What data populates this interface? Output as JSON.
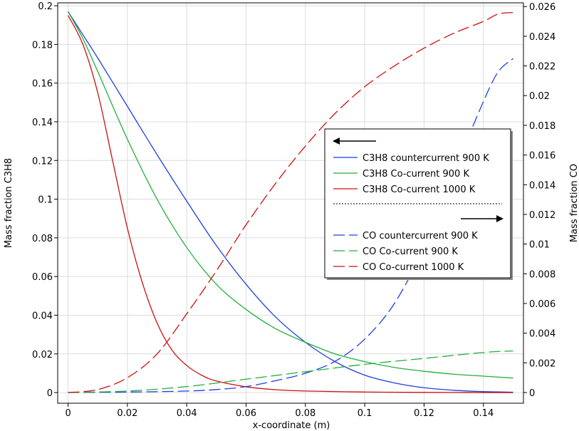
{
  "chart_data": {
    "type": "line",
    "xlabel": "x-coordinate (m)",
    "ylabel_left": "Mass fraction C3H8",
    "ylabel_right": "Mass fraction CO",
    "xlim": [
      -0.0035,
      0.1535
    ],
    "ylim_left": [
      -0.0055,
      0.2015
    ],
    "ylim_right": [
      -0.00072,
      0.02625
    ],
    "xticks": [
      0,
      0.02,
      0.04,
      0.06,
      0.08,
      0.1,
      0.12,
      0.14
    ],
    "xtick_labels": [
      "0",
      "0.02",
      "0.04",
      "0.06",
      "0.08",
      "0.1",
      "0.12",
      "0.14"
    ],
    "yticks_left": [
      0,
      0.02,
      0.04,
      0.06,
      0.08,
      0.1,
      0.12,
      0.14,
      0.16,
      0.18,
      0.2
    ],
    "ytick_labels_left": [
      "0",
      "0.02",
      "0.04",
      "0.06",
      "0.08",
      "0.1",
      "0.12",
      "0.14",
      "0.16",
      "0.18",
      "0.2"
    ],
    "yticks_right": [
      0,
      0.002,
      0.004,
      0.006,
      0.008,
      0.01,
      0.012,
      0.014,
      0.016,
      0.018,
      0.02,
      0.022,
      0.024,
      0.026
    ],
    "ytick_labels_right": [
      "0",
      "0.002",
      "0.004",
      "0.006",
      "0.008",
      "0.01",
      "0.012",
      "0.014",
      "0.016",
      "0.018",
      "0.02",
      "0.022",
      "0.024",
      "0.026"
    ],
    "grid": true,
    "legend_position": "center-right",
    "legend_left_arrow": "←",
    "legend_right_arrow": "→",
    "series": [
      {
        "name": "C3H8 countercurrent 900 K",
        "axis": "left",
        "color": "#1f3fe0",
        "dashed": false,
        "x": [
          0,
          0.005,
          0.01,
          0.02,
          0.03,
          0.04,
          0.05,
          0.06,
          0.07,
          0.08,
          0.09,
          0.1,
          0.11,
          0.12,
          0.13,
          0.14,
          0.15
        ],
        "y": [
          0.197,
          0.185,
          0.173,
          0.148,
          0.123,
          0.099,
          0.076,
          0.056,
          0.039,
          0.026,
          0.016,
          0.009,
          0.005,
          0.0025,
          0.0012,
          0.0005,
          0.0002
        ]
      },
      {
        "name": "C3H8 Co-current 900 K",
        "axis": "left",
        "color": "#22b03a",
        "dashed": false,
        "x": [
          0,
          0.005,
          0.01,
          0.02,
          0.03,
          0.04,
          0.05,
          0.06,
          0.07,
          0.08,
          0.09,
          0.1,
          0.11,
          0.12,
          0.13,
          0.14,
          0.15
        ],
        "y": [
          0.197,
          0.183,
          0.166,
          0.131,
          0.1,
          0.075,
          0.056,
          0.043,
          0.033,
          0.026,
          0.02,
          0.016,
          0.013,
          0.011,
          0.0095,
          0.0085,
          0.0075
        ]
      },
      {
        "name": "C3H8 Co-current 1000 K",
        "axis": "left",
        "color": "#cc1111",
        "dashed": false,
        "x": [
          0,
          0.005,
          0.01,
          0.015,
          0.02,
          0.025,
          0.03,
          0.035,
          0.04,
          0.045,
          0.05,
          0.06,
          0.07,
          0.08,
          0.1,
          0.12,
          0.15
        ],
        "y": [
          0.195,
          0.18,
          0.155,
          0.12,
          0.085,
          0.057,
          0.036,
          0.022,
          0.014,
          0.009,
          0.006,
          0.003,
          0.0015,
          0.0008,
          0.0003,
          0.0001,
          0.0
        ]
      },
      {
        "name": "CO countercurrent 900 K",
        "axis": "right",
        "color": "#1f3fe0",
        "dashed": true,
        "x": [
          0,
          0.02,
          0.04,
          0.05,
          0.06,
          0.07,
          0.08,
          0.09,
          0.1,
          0.11,
          0.12,
          0.13,
          0.14,
          0.145,
          0.15
        ],
        "y": [
          0,
          3e-05,
          0.0001,
          0.0002,
          0.0004,
          0.0008,
          0.0013,
          0.0021,
          0.0036,
          0.006,
          0.0098,
          0.0148,
          0.0196,
          0.0216,
          0.0225
        ]
      },
      {
        "name": "CO Co-current 900 K",
        "axis": "right",
        "color": "#22b03a",
        "dashed": true,
        "x": [
          0,
          0.02,
          0.04,
          0.06,
          0.08,
          0.1,
          0.12,
          0.14,
          0.15
        ],
        "y": [
          0,
          0.0001,
          0.0004,
          0.0009,
          0.0014,
          0.0019,
          0.0023,
          0.0027,
          0.0028
        ]
      },
      {
        "name": "CO Co-current 1000 K",
        "axis": "right",
        "color": "#cc1111",
        "dashed": true,
        "x": [
          0,
          0.01,
          0.02,
          0.03,
          0.04,
          0.05,
          0.06,
          0.07,
          0.08,
          0.09,
          0.1,
          0.11,
          0.12,
          0.13,
          0.14,
          0.145,
          0.15
        ],
        "y": [
          0,
          0.0002,
          0.001,
          0.0026,
          0.0053,
          0.0082,
          0.0113,
          0.0141,
          0.0166,
          0.0188,
          0.0206,
          0.022,
          0.0232,
          0.0242,
          0.025,
          0.0255,
          0.0256
        ]
      }
    ]
  }
}
